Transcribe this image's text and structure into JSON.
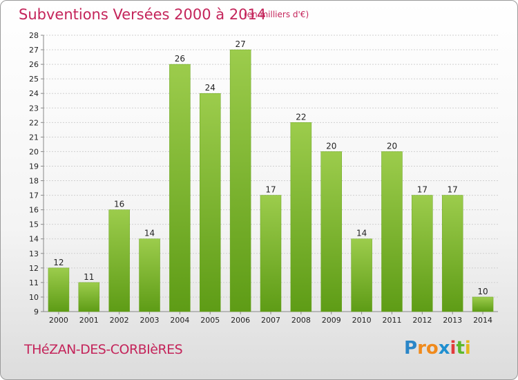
{
  "header": {
    "title": "Subventions Versées 2000 à 2014",
    "subtitle": "(en milliers d'€)"
  },
  "footer": {
    "commune": "THéZAN-DES-CORBIèRES",
    "logo_letters": [
      "P",
      "r",
      "o",
      "x",
      "i",
      "t",
      "i"
    ],
    "logo_colors": [
      "#2a86c8",
      "#f08a1c",
      "#f08a1c",
      "#1f8fd0",
      "#e23b3b",
      "#5cb82c",
      "#e4b81c"
    ]
  },
  "chart_data": {
    "type": "bar",
    "title": "Subventions Versées 2000 à 2014",
    "subtitle": "(en milliers d'€)",
    "categories": [
      "2000",
      "2001",
      "2002",
      "2003",
      "2004",
      "2005",
      "2006",
      "2007",
      "2008",
      "2009",
      "2010",
      "2011",
      "2012",
      "2013",
      "2014"
    ],
    "values": [
      12,
      11,
      16,
      14,
      26,
      24,
      27,
      17,
      22,
      20,
      14,
      20,
      17,
      17,
      10
    ],
    "ylim": [
      9,
      28
    ],
    "yticks": [
      9,
      10,
      11,
      12,
      13,
      14,
      15,
      16,
      17,
      18,
      19,
      20,
      21,
      22,
      23,
      24,
      25,
      26,
      27,
      28
    ],
    "xlabel": "",
    "ylabel": "",
    "grid": true,
    "bar_color_top": "#9ccc4c",
    "bar_color_bottom": "#5e9c16"
  }
}
